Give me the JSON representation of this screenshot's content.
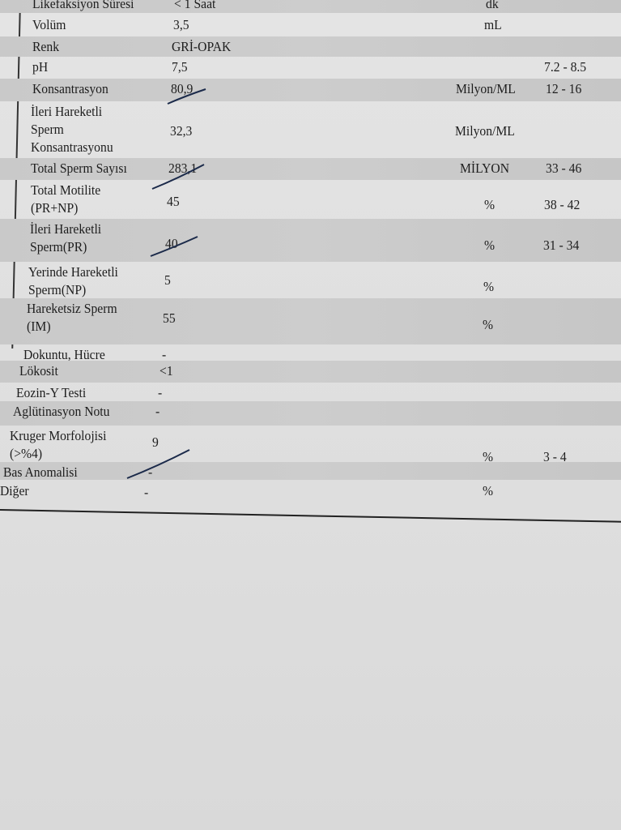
{
  "report": {
    "rows": [
      {
        "label": "Likefaksiyon Süresi",
        "value": "< 1 Saat",
        "unit": "dk",
        "range": ""
      },
      {
        "label": "Volüm",
        "value": "3,5",
        "unit": "mL",
        "range": ""
      },
      {
        "label": "Renk",
        "value": "GRİ-OPAK",
        "unit": "",
        "range": ""
      },
      {
        "label": "pH",
        "value": "7,5",
        "unit": "",
        "range": "7.2 - 8.5"
      },
      {
        "label": "Konsantrasyon",
        "value": "80,9",
        "unit": "Milyon/ML",
        "range": "12 - 16"
      },
      {
        "label": "İleri Hareketli\nSperm\nKonsantrasyonu",
        "value": "32,3",
        "unit": "Milyon/ML",
        "range": ""
      },
      {
        "label": "Total Sperm Sayısı",
        "value": "283,1",
        "unit": "MİLYON",
        "range": "33 - 46"
      },
      {
        "label": "Total Motilite\n(PR+NP)",
        "value": "45",
        "unit": "%",
        "range": "38 - 42"
      },
      {
        "label": "İleri Hareketli\nSperm(PR)",
        "value": "40",
        "unit": "%",
        "range": "31 - 34"
      },
      {
        "label": "Yerinde Hareketli\nSperm(NP)",
        "value": "5",
        "unit": "%",
        "range": ""
      },
      {
        "label": "Hareketsiz Sperm\n(IM)",
        "value": "55",
        "unit": "%",
        "range": ""
      },
      {
        "label": "Dokuntu, Hücre",
        "value": "-",
        "unit": "",
        "range": ""
      },
      {
        "label": "Lökosit",
        "value": "<1",
        "unit": "",
        "range": ""
      },
      {
        "label": "Eozin-Y Testi",
        "value": "-",
        "unit": "",
        "range": ""
      },
      {
        "label": "Aglütinasyon Notu",
        "value": "-",
        "unit": "",
        "range": ""
      },
      {
        "label": "Kruger Morfolojisi\n(>%4)",
        "value": "9",
        "unit": "%",
        "range": "3 - 4"
      },
      {
        "label": "Bas Anomalisi",
        "value": "-",
        "unit": "",
        "range": ""
      },
      {
        "label": "Diğer",
        "value": "-",
        "unit": "%",
        "range": ""
      }
    ]
  }
}
